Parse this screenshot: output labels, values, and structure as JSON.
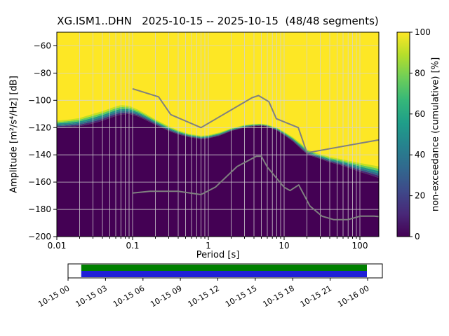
{
  "figure": {
    "title": "XG.ISM1..DHN   2025-10-15 -- 2025-10-15  (48/48 segments)"
  },
  "chart_data": {
    "type": "heatmap",
    "subtype": "ppsd-cumulative-non-exceedance",
    "title": "XG.ISM1..DHN   2025-10-15 -- 2025-10-15  (48/48 segments)",
    "xlabel": "Period [s]",
    "ylabel": "Amplitude [m²/s⁴/Hz] [dB]",
    "x_scale": "log",
    "xlim": [
      0.01,
      178
    ],
    "ylim": [
      -200,
      -50
    ],
    "grid": true,
    "x_ticks": [
      {
        "v": 0.01,
        "label": "0.01"
      },
      {
        "v": 0.1,
        "label": "0.1"
      },
      {
        "v": 1,
        "label": "1"
      },
      {
        "v": 10,
        "label": "10"
      },
      {
        "v": 100,
        "label": "100"
      }
    ],
    "y_ticks": [
      {
        "v": -60,
        "label": "−60"
      },
      {
        "v": -80,
        "label": "−80"
      },
      {
        "v": -100,
        "label": "−100"
      },
      {
        "v": -120,
        "label": "−120"
      },
      {
        "v": -140,
        "label": "−140"
      },
      {
        "v": -160,
        "label": "−160"
      },
      {
        "v": -180,
        "label": "−180"
      },
      {
        "v": -200,
        "label": "−200"
      }
    ],
    "colorbar": {
      "label": "non-exceedance (cumulative) [%]",
      "ticks": [
        {
          "v": 0,
          "label": "0"
        },
        {
          "v": 20,
          "label": "20"
        },
        {
          "v": 40,
          "label": "40"
        },
        {
          "v": 60,
          "label": "60"
        },
        {
          "v": 80,
          "label": "80"
        },
        {
          "v": 100,
          "label": "100"
        }
      ],
      "colormap": "viridis",
      "stops": [
        "#440154",
        "#482878",
        "#3e4989",
        "#31688e",
        "#26828e",
        "#1f9e89",
        "#35b779",
        "#6ece58",
        "#b5de2b",
        "#fde725"
      ],
      "low_color": "#440154",
      "high_color": "#fde725"
    },
    "cumulative_boundary": {
      "description": "period [s], dB top of 0% (dark) region, dB bottom of 100% (yellow) region",
      "strip_colors": [
        "#482878",
        "#31688e",
        "#21918c",
        "#5ec962",
        "#c2df23"
      ],
      "points": [
        [
          0.01,
          -120,
          -115
        ],
        [
          0.015,
          -119.5,
          -114
        ],
        [
          0.02,
          -119,
          -113
        ],
        [
          0.03,
          -117,
          -110
        ],
        [
          0.04,
          -115,
          -108
        ],
        [
          0.05,
          -113,
          -106
        ],
        [
          0.06,
          -111.5,
          -104.5
        ],
        [
          0.07,
          -110.5,
          -103.5
        ],
        [
          0.09,
          -110,
          -104
        ],
        [
          0.12,
          -112,
          -107
        ],
        [
          0.15,
          -114.5,
          -110
        ],
        [
          0.2,
          -118,
          -114
        ],
        [
          0.3,
          -122.5,
          -119
        ],
        [
          0.4,
          -125,
          -122
        ],
        [
          0.55,
          -127,
          -124.5
        ],
        [
          0.8,
          -128.5,
          -126
        ],
        [
          1.0,
          -128,
          -125.5
        ],
        [
          1.4,
          -126,
          -123.5
        ],
        [
          2,
          -122.5,
          -120.5
        ],
        [
          3,
          -120,
          -118
        ],
        [
          4,
          -119,
          -117.3
        ],
        [
          5,
          -118.6,
          -117.2
        ],
        [
          6,
          -119.3,
          -117.8
        ],
        [
          8,
          -122,
          -120
        ],
        [
          10,
          -125.5,
          -123
        ],
        [
          13,
          -130,
          -127
        ],
        [
          17,
          -136,
          -132
        ],
        [
          20,
          -139.5,
          -136
        ],
        [
          25,
          -141.5,
          -138
        ],
        [
          30,
          -143,
          -139.5
        ],
        [
          40,
          -145.5,
          -141.5
        ],
        [
          55,
          -147.5,
          -143
        ],
        [
          75,
          -150,
          -144.5
        ],
        [
          100,
          -152.5,
          -146
        ],
        [
          140,
          -155,
          -147.5
        ],
        [
          178,
          -157,
          -148.5
        ]
      ]
    },
    "noise_models": {
      "color": "#808080",
      "nhnm": [
        [
          0.1,
          -91.5
        ],
        [
          0.22,
          -97.4
        ],
        [
          0.32,
          -110.5
        ],
        [
          0.8,
          -120.0
        ],
        [
          3.8,
          -98.0
        ],
        [
          4.6,
          -96.5
        ],
        [
          6.3,
          -101.0
        ],
        [
          7.9,
          -113.5
        ],
        [
          15.4,
          -120.0
        ],
        [
          20.0,
          -138.5
        ],
        [
          178.0,
          -129.0
        ]
      ],
      "nlnm": [
        [
          0.1,
          -168.0
        ],
        [
          0.17,
          -166.7
        ],
        [
          0.4,
          -166.7
        ],
        [
          0.8,
          -169.2
        ],
        [
          1.24,
          -163.7
        ],
        [
          2.4,
          -148.6
        ],
        [
          4.3,
          -141.1
        ],
        [
          5.0,
          -141.1
        ],
        [
          6.0,
          -149.0
        ],
        [
          10.0,
          -163.8
        ],
        [
          12.0,
          -166.2
        ],
        [
          15.6,
          -162.1
        ],
        [
          21.9,
          -177.5
        ],
        [
          31.6,
          -185.0
        ],
        [
          45.0,
          -187.5
        ],
        [
          70.0,
          -187.5
        ],
        [
          101.0,
          -185.0
        ],
        [
          154.0,
          -185.0
        ],
        [
          178.0,
          -185.3
        ]
      ]
    },
    "timeline": {
      "labels": [
        "10-15 00",
        "10-15 03",
        "10-15 06",
        "10-15 09",
        "10-15 12",
        "10-15 15",
        "10-15 18",
        "10-15 21",
        "10-16 00"
      ],
      "covered_color": "#008000",
      "data_color": "#2020d8",
      "bar_start_frac": 0.042,
      "bar_end_frac": 0.951
    }
  }
}
